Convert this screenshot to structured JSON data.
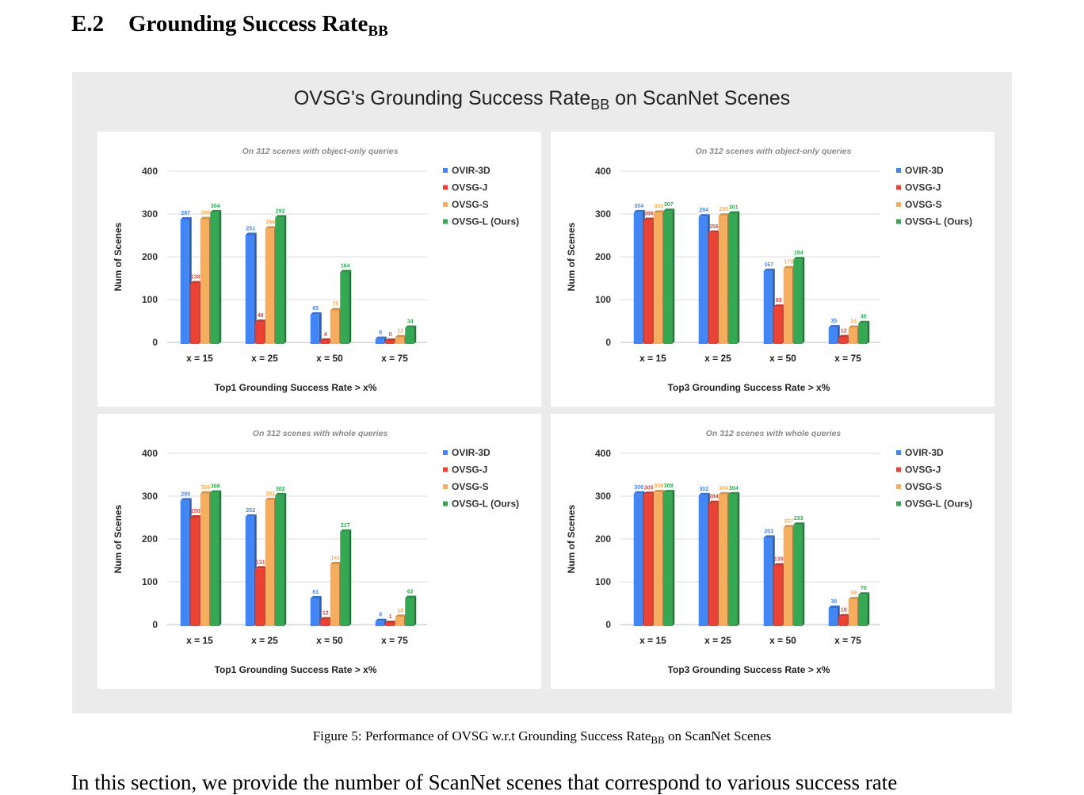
{
  "section": {
    "number": "E.2",
    "title": "Grounding Success Rate",
    "subscript": "BB"
  },
  "panel": {
    "title_pre": "OVSG's Grounding Success Rate",
    "title_sub": "BB",
    "title_post": " on ScanNet Scenes"
  },
  "caption": {
    "pre": "Figure 5: Performance of OVSG w.r.t Grounding Success Rate",
    "sub": "BB",
    "post": " on ScanNet Scenes"
  },
  "body_text": "In this section, we provide the number of ScanNet scenes that correspond to various success rate",
  "colors": {
    "OVIR-3D": "#4285f4",
    "OVSG-J": "#ea4335",
    "OVSG-S": "#f6ad5e",
    "OVSG-L (Ours)": "#34a853"
  },
  "chart_data": [
    {
      "type": "bar",
      "title": "On 312 scenes with object-only queries",
      "xlabel": "Top1 Grounding Success Rate > x%",
      "ylabel": "Num of Scenes",
      "ylim": [
        0,
        400
      ],
      "yticks": [
        0,
        100,
        200,
        300,
        400
      ],
      "categories": [
        "x = 15",
        "x = 25",
        "x = 50",
        "x = 75"
      ],
      "legend": "right",
      "series": [
        {
          "name": "OVIR-3D",
          "values": [
            287,
            251,
            65,
            8
          ]
        },
        {
          "name": "OVSG-J",
          "values": [
            138,
            48,
            4,
            0
          ]
        },
        {
          "name": "OVSG-S",
          "values": [
            288,
            266,
            75,
            12
          ]
        },
        {
          "name": "OVSG-L (Ours)",
          "values": [
            304,
            292,
            164,
            34
          ]
        }
      ]
    },
    {
      "type": "bar",
      "title": "On 312 scenes with object-only queries",
      "xlabel": "Top3 Grounding Success Rate > x%",
      "ylabel": "Num of Scenes",
      "ylim": [
        0,
        400
      ],
      "yticks": [
        0,
        100,
        200,
        300,
        400
      ],
      "categories": [
        "x = 15",
        "x = 25",
        "x = 50",
        "x = 75"
      ],
      "legend": "right",
      "series": [
        {
          "name": "OVIR-3D",
          "values": [
            304,
            294,
            167,
            35
          ]
        },
        {
          "name": "OVSG-J",
          "values": [
            286,
            256,
            83,
            12
          ]
        },
        {
          "name": "OVSG-S",
          "values": [
            303,
            296,
            173,
            34
          ]
        },
        {
          "name": "OVSG-L (Ours)",
          "values": [
            307,
            301,
            194,
            45
          ]
        }
      ]
    },
    {
      "type": "bar",
      "title": "On 312 scenes with whole queries",
      "xlabel": "Top1 Grounding Success Rate > x%",
      "ylabel": "Num of Scenes",
      "ylim": [
        0,
        400
      ],
      "yticks": [
        0,
        100,
        200,
        300,
        400
      ],
      "categories": [
        "x = 15",
        "x = 25",
        "x = 50",
        "x = 75"
      ],
      "legend": "right",
      "series": [
        {
          "name": "OVIR-3D",
          "values": [
            290,
            252,
            61,
            8
          ]
        },
        {
          "name": "OVSG-J",
          "values": [
            250,
            131,
            12,
            1
          ]
        },
        {
          "name": "OVSG-S",
          "values": [
            306,
            291,
            141,
            18
          ]
        },
        {
          "name": "OVSG-L (Ours)",
          "values": [
            308,
            302,
            217,
            62
          ]
        }
      ]
    },
    {
      "type": "bar",
      "title": "On 312 scenes with whole queries",
      "xlabel": "Top3 Grounding Success Rate > x%",
      "ylabel": "Num of Scenes",
      "ylim": [
        0,
        400
      ],
      "yticks": [
        0,
        100,
        200,
        300,
        400
      ],
      "categories": [
        "x = 15",
        "x = 25",
        "x = 50",
        "x = 75"
      ],
      "legend": "right",
      "series": [
        {
          "name": "OVIR-3D",
          "values": [
            306,
            302,
            203,
            39
          ]
        },
        {
          "name": "OVSG-J",
          "values": [
            305,
            284,
            138,
            19
          ]
        },
        {
          "name": "OVSG-S",
          "values": [
            309,
            304,
            227,
            59
          ]
        },
        {
          "name": "OVSG-L (Ours)",
          "values": [
            309,
            304,
            233,
            70
          ]
        }
      ]
    }
  ]
}
